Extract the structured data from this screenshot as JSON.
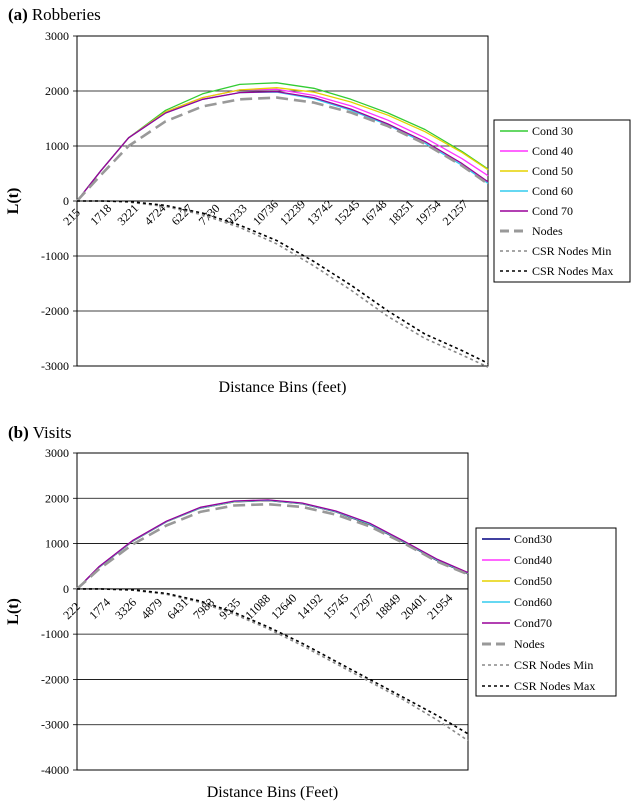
{
  "chart_data": [
    {
      "type": "line",
      "panel_letter": "(a)",
      "title": "Robberies",
      "xlabel": "Distance Bins (feet)",
      "ylabel": "L(t)",
      "xlim": [
        215,
        22400
      ],
      "ylim": [
        -3000,
        3000
      ],
      "y_ticks": [
        3000,
        2000,
        1000,
        0,
        -1000,
        -2000,
        -3000
      ],
      "x_tick_labels": [
        215,
        1718,
        3221,
        4724,
        6227,
        7730,
        9233,
        10736,
        12239,
        13742,
        15245,
        16748,
        18251,
        19754,
        21257
      ],
      "grid": "horizontal",
      "legend_position": "right",
      "x": [
        215,
        1500,
        3000,
        5000,
        7000,
        9000,
        11000,
        13000,
        15000,
        17000,
        19000,
        21000,
        22400
      ],
      "series": [
        {
          "name": "Cond 30",
          "color": "#33cc33",
          "dash": "solid",
          "values": [
            0,
            550,
            1150,
            1650,
            1950,
            2120,
            2150,
            2050,
            1850,
            1600,
            1300,
            900,
            580
          ]
        },
        {
          "name": "Cond 40",
          "color": "#ff33ff",
          "dash": "solid",
          "values": [
            0,
            550,
            1150,
            1620,
            1880,
            2020,
            2030,
            1920,
            1730,
            1470,
            1150,
            770,
            460
          ]
        },
        {
          "name": "Cond 50",
          "color": "#e6d200",
          "dash": "solid",
          "values": [
            0,
            550,
            1150,
            1620,
            1880,
            2020,
            2060,
            1980,
            1800,
            1560,
            1260,
            880,
            570
          ]
        },
        {
          "name": "Cond 60",
          "color": "#33ccee",
          "dash": "solid",
          "values": [
            0,
            550,
            1150,
            1600,
            1850,
            1970,
            1980,
            1860,
            1650,
            1380,
            1050,
            650,
            320
          ]
        },
        {
          "name": "Cond 70",
          "color": "#990099",
          "dash": "solid",
          "values": [
            0,
            550,
            1150,
            1600,
            1850,
            1970,
            1990,
            1880,
            1670,
            1400,
            1080,
            680,
            350
          ]
        },
        {
          "name": "Nodes",
          "color": "#999999",
          "dash": "longdash",
          "values": [
            0,
            470,
            1000,
            1450,
            1720,
            1850,
            1880,
            1790,
            1610,
            1360,
            1040,
            640,
            310
          ]
        },
        {
          "name": "CSR Nodes Min",
          "color": "#888888",
          "dash": "dotted",
          "values": [
            0,
            0,
            -20,
            -100,
            -250,
            -480,
            -780,
            -1180,
            -1620,
            -2100,
            -2500,
            -2800,
            -3020
          ]
        },
        {
          "name": "CSR Nodes Max",
          "color": "#000000",
          "dash": "dotted",
          "values": [
            0,
            0,
            -10,
            -80,
            -220,
            -440,
            -720,
            -1100,
            -1530,
            -2000,
            -2420,
            -2720,
            -2950
          ]
        }
      ]
    },
    {
      "type": "line",
      "panel_letter": "(b)",
      "title": "Visits",
      "xlabel": "Distance Bins (Feet)",
      "ylabel": "L(t)",
      "xlim": [
        222,
        23300
      ],
      "ylim": [
        -4000,
        3000
      ],
      "y_ticks": [
        3000,
        2000,
        1000,
        0,
        -1000,
        -2000,
        -3000,
        -4000
      ],
      "x_tick_labels": [
        222,
        1774,
        3326,
        4879,
        6431,
        7983,
        9535,
        11088,
        12640,
        14192,
        15745,
        17297,
        18849,
        20401,
        21954
      ],
      "grid": "horizontal",
      "legend_position": "right",
      "x": [
        222,
        1500,
        3500,
        5500,
        7500,
        9500,
        11500,
        13500,
        15500,
        17500,
        19500,
        21500,
        23300
      ],
      "series": [
        {
          "name": "Cond30",
          "color": "#000080",
          "dash": "solid",
          "values": [
            0,
            470,
            1050,
            1480,
            1780,
            1920,
            1950,
            1880,
            1700,
            1420,
            1030,
            620,
            330
          ]
        },
        {
          "name": "Cond40",
          "color": "#ff33ff",
          "dash": "solid",
          "values": [
            0,
            480,
            1060,
            1490,
            1790,
            1930,
            1960,
            1890,
            1710,
            1440,
            1050,
            640,
            350
          ]
        },
        {
          "name": "Cond50",
          "color": "#e6d200",
          "dash": "solid",
          "values": [
            0,
            475,
            1055,
            1485,
            1785,
            1925,
            1955,
            1885,
            1705,
            1430,
            1040,
            630,
            340
          ]
        },
        {
          "name": "Cond60",
          "color": "#33ccee",
          "dash": "solid",
          "values": [
            0,
            478,
            1058,
            1488,
            1788,
            1928,
            1958,
            1888,
            1708,
            1435,
            1045,
            635,
            345
          ]
        },
        {
          "name": "Cond70",
          "color": "#990099",
          "dash": "solid",
          "values": [
            0,
            485,
            1065,
            1495,
            1800,
            1940,
            1965,
            1895,
            1720,
            1450,
            1060,
            650,
            360
          ]
        },
        {
          "name": "Nodes",
          "color": "#999999",
          "dash": "longdash",
          "values": [
            0,
            430,
            980,
            1400,
            1700,
            1840,
            1870,
            1810,
            1640,
            1380,
            1010,
            600,
            320
          ]
        },
        {
          "name": "CSR Nodes Min",
          "color": "#888888",
          "dash": "dotted",
          "values": [
            0,
            0,
            -30,
            -120,
            -300,
            -560,
            -880,
            -1250,
            -1650,
            -2050,
            -2450,
            -2900,
            -3350
          ]
        },
        {
          "name": "CSR Nodes Max",
          "color": "#000000",
          "dash": "dotted",
          "values": [
            0,
            0,
            -20,
            -100,
            -270,
            -520,
            -840,
            -1200,
            -1600,
            -2000,
            -2400,
            -2800,
            -3200
          ]
        }
      ]
    }
  ]
}
